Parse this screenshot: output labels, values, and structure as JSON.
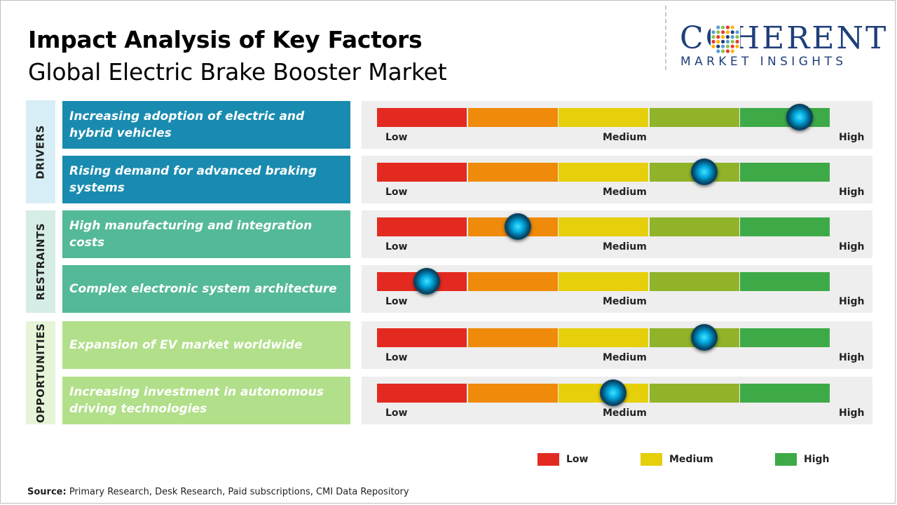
{
  "title": "Impact Analysis of Key Factors",
  "subtitle": "Global Electric Brake Booster Market",
  "logo": {
    "word": "COHERENT",
    "sub": "MARKET INSIGHTS"
  },
  "scale_labels": {
    "low": "Low",
    "medium": "Medium",
    "high": "High"
  },
  "colors": {
    "segments": [
      "#e32a20",
      "#ef8a0a",
      "#e6cf0b",
      "#90b32a",
      "#3eaa47"
    ],
    "drivers": "#1a8bb0",
    "restraints": "#54b998",
    "opportunities": "#b2df8a",
    "drivers_band": "#d8eef7",
    "restraints_band": "#d5ede6",
    "opportunities_band": "#e6f5d8"
  },
  "chart_data": {
    "type": "gauge-bars",
    "title": "Impact Analysis of Key Factors",
    "subtitle": "Global Electric Brake Booster Market",
    "scale": [
      "Low",
      "Medium",
      "High"
    ],
    "categories": [
      {
        "name": "DRIVERS",
        "factors": [
          {
            "label": "Increasing adoption of electric and hybrid vehicles",
            "impact": 0.93
          },
          {
            "label": "Rising demand for advanced braking systems",
            "impact": 0.72
          }
        ]
      },
      {
        "name": "RESTRAINTS",
        "factors": [
          {
            "label": "High manufacturing and integration costs",
            "impact": 0.31
          },
          {
            "label": "Complex electronic system architecture",
            "impact": 0.11
          }
        ]
      },
      {
        "name": "OPPORTUNITIES",
        "factors": [
          {
            "label": "Expansion of EV market worldwide",
            "impact": 0.72
          },
          {
            "label": "Increasing investment in autonomous driving technologies",
            "impact": 0.52
          }
        ]
      }
    ],
    "legend": [
      {
        "label": "Low",
        "color": "#e32a20"
      },
      {
        "label": "Medium",
        "color": "#e6cf0b"
      },
      {
        "label": "High",
        "color": "#3eaa47"
      }
    ]
  },
  "source": {
    "label": "Source:",
    "text": "Primary Research, Desk Research, Paid subscriptions, CMI Data Repository"
  }
}
